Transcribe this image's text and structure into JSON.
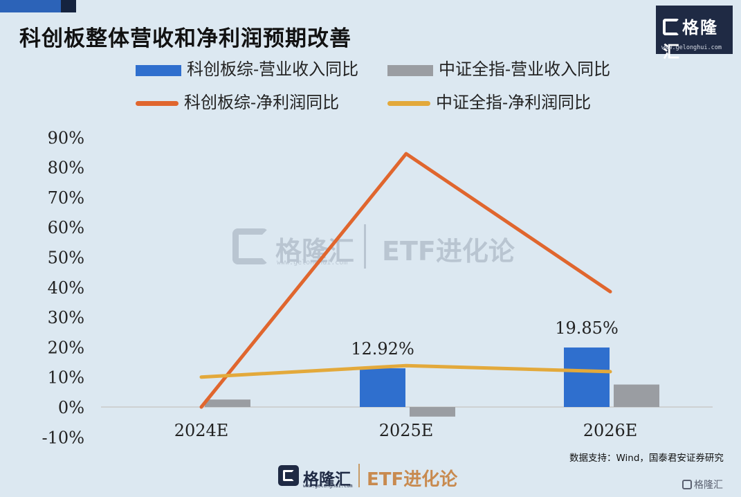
{
  "title": "科创板整体营收和净利润预期改善",
  "brand": {
    "name": "格隆汇",
    "url": "www.gelonghui.com",
    "sub_brand": "ETF进化论"
  },
  "source": "数据支持：Wind，国泰君安证券研究",
  "colors": {
    "star_revenue": "#2f6fce",
    "csi_revenue": "#9a9da2",
    "star_profit": "#e0662e",
    "csi_profit": "#e3a93b"
  },
  "chart_data": {
    "type": "bar",
    "categories": [
      "2024E",
      "2025E",
      "2026E"
    ],
    "series": [
      {
        "name": "科创板综-营业收入同比",
        "kind": "bar",
        "values": [
          null,
          12.92,
          19.85
        ]
      },
      {
        "name": "中证全指-营业收入同比",
        "kind": "bar",
        "values": [
          2.5,
          -3.2,
          7.5
        ]
      },
      {
        "name": "科创板综-净利润同比",
        "kind": "line",
        "values": [
          0,
          84.5,
          38.5
        ]
      },
      {
        "name": "中证全指-净利润同比",
        "kind": "line",
        "values": [
          10,
          13.8,
          11.8
        ]
      }
    ],
    "data_labels": [
      "12.92%",
      "19.85%"
    ],
    "y_ticks": [
      "90%",
      "80%",
      "70%",
      "60%",
      "50%",
      "40%",
      "30%",
      "20%",
      "10%",
      "0%",
      "-10%"
    ],
    "ylim": [
      -10,
      90
    ],
    "unit": "%",
    "grid": false,
    "legend": "top"
  }
}
